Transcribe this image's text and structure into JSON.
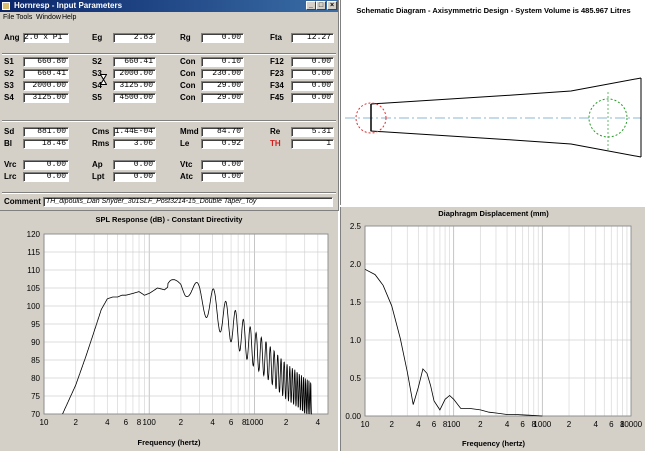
{
  "input_window": {
    "title": "Hornresp - Input Parameters",
    "menus": [
      "File",
      "Tools",
      "Window",
      "Help"
    ],
    "params": [
      {
        "label": "Ang",
        "value": "2.0 x Pi"
      },
      {
        "label": "Eg",
        "value": "2.83"
      },
      {
        "label": "Rg",
        "value": "0.00"
      },
      {
        "label": "Fta",
        "value": "12.27"
      },
      {
        "label": "S1",
        "value": "660.80"
      },
      {
        "label": "S2",
        "value": "660.41"
      },
      {
        "label": "Con",
        "value": "0.10"
      },
      {
        "label": "F12",
        "value": "0.00"
      },
      {
        "label": "S2",
        "value": "660.41"
      },
      {
        "label": "S3",
        "value": "2000.00"
      },
      {
        "label": "Con",
        "value": "230.00"
      },
      {
        "label": "F23",
        "value": "0.00"
      },
      {
        "label": "S3",
        "value": "2000.00"
      },
      {
        "label": "S4",
        "value": "3125.00"
      },
      {
        "label": "Con",
        "value": "29.00"
      },
      {
        "label": "F34",
        "value": "0.00"
      },
      {
        "label": "S4",
        "value": "3125.00"
      },
      {
        "label": "S5",
        "value": "4500.00"
      },
      {
        "label": "Con",
        "value": "29.00"
      },
      {
        "label": "F45",
        "value": "0.00"
      },
      {
        "label": "Sd",
        "value": "881.00"
      },
      {
        "label": "Cms",
        "value": "1.44E-04"
      },
      {
        "label": "Mmd",
        "value": "84.70"
      },
      {
        "label": "Re",
        "value": "5.31"
      },
      {
        "label": "Bl",
        "value": "18.46"
      },
      {
        "label": "Rms",
        "value": "3.06"
      },
      {
        "label": "Le",
        "value": "0.92"
      },
      {
        "label": "TH",
        "value": "1"
      },
      {
        "label": "Vrc",
        "value": "0.00"
      },
      {
        "label": "Ap",
        "value": "0.00"
      },
      {
        "label": "Vtc",
        "value": "0.00"
      },
      {
        "label": "Lrc",
        "value": "0.00"
      },
      {
        "label": "Lpt",
        "value": "0.00"
      },
      {
        "label": "Atc",
        "value": "0.00"
      }
    ],
    "comment_label": "Comment",
    "comment_value": "TH_dipoulis_Dan Snyder_301SLF_Post3214-15_Double Taper_Toy"
  },
  "schematic": {
    "title": "Schematic Diagram - Axisymmetric Design - System Volume is 485.967 Litres"
  },
  "spl_chart": {
    "title": "SPL Response (dB) - Constant Directivity",
    "xlabel": "Frequency (hertz)",
    "y_ticks": [
      "120",
      "115",
      "110",
      "105",
      "100",
      "95",
      "90",
      "85",
      "80",
      "75",
      "70"
    ],
    "x_ticks": [
      "10",
      "2",
      "4",
      "6",
      "8",
      "100",
      "2",
      "4",
      "6",
      "8",
      "1000",
      "2",
      "4"
    ]
  },
  "disp_chart": {
    "title": "Diaphragm Displacement (mm)",
    "xlabel": "Frequency (hertz)",
    "y_ticks": [
      "2.5",
      "2.0",
      "1.5",
      "1.0",
      "0.5",
      "0.00"
    ],
    "x_ticks": [
      "10",
      "2",
      "4",
      "6",
      "8",
      "100",
      "2",
      "4",
      "6",
      "8",
      "1000",
      "2",
      "4",
      "6",
      "8",
      "10000"
    ]
  },
  "chart_data": [
    {
      "type": "line",
      "title": "SPL Response (dB) - Constant Directivity",
      "xlabel": "Frequency (hertz)",
      "ylabel": "",
      "xscale": "log",
      "xlim": [
        10,
        5000
      ],
      "ylim": [
        70,
        120
      ],
      "grid": true,
      "x": [
        15,
        20,
        25,
        30,
        35,
        40,
        45,
        50,
        55,
        60,
        70,
        80,
        90,
        100,
        120,
        140,
        160,
        180,
        200,
        220,
        250,
        300,
        350,
        400,
        500,
        600,
        700,
        800,
        1000,
        1300,
        1600,
        2000,
        2500,
        3000,
        3500
      ],
      "values": [
        70,
        78,
        86,
        93,
        99,
        102,
        102.5,
        102.5,
        103,
        103,
        103.5,
        104,
        103,
        103.5,
        105,
        104.5,
        106,
        106.5,
        107,
        105,
        104,
        103,
        101,
        100,
        97,
        95,
        93,
        91,
        88,
        85,
        82,
        79,
        77,
        75,
        74
      ],
      "note_series": "smoothed envelope of the oscillating response"
    },
    {
      "type": "line",
      "title": "Diaphragm Displacement (mm)",
      "xlabel": "Frequency (hertz)",
      "ylabel": "",
      "xscale": "log",
      "xlim": [
        10,
        10000
      ],
      "ylim": [
        0,
        2.5
      ],
      "grid": true,
      "x": [
        10,
        13,
        16,
        20,
        25,
        30,
        35,
        40,
        45,
        50,
        55,
        60,
        70,
        80,
        90,
        100,
        120,
        150,
        200,
        250,
        300,
        400,
        500,
        700,
        1000
      ],
      "values": [
        1.93,
        1.86,
        1.72,
        1.45,
        1.02,
        0.58,
        0.15,
        0.38,
        0.62,
        0.56,
        0.4,
        0.2,
        0.08,
        0.22,
        0.27,
        0.22,
        0.1,
        0.1,
        0.08,
        0.05,
        0.04,
        0.02,
        0.02,
        0.01,
        0.0
      ]
    }
  ]
}
